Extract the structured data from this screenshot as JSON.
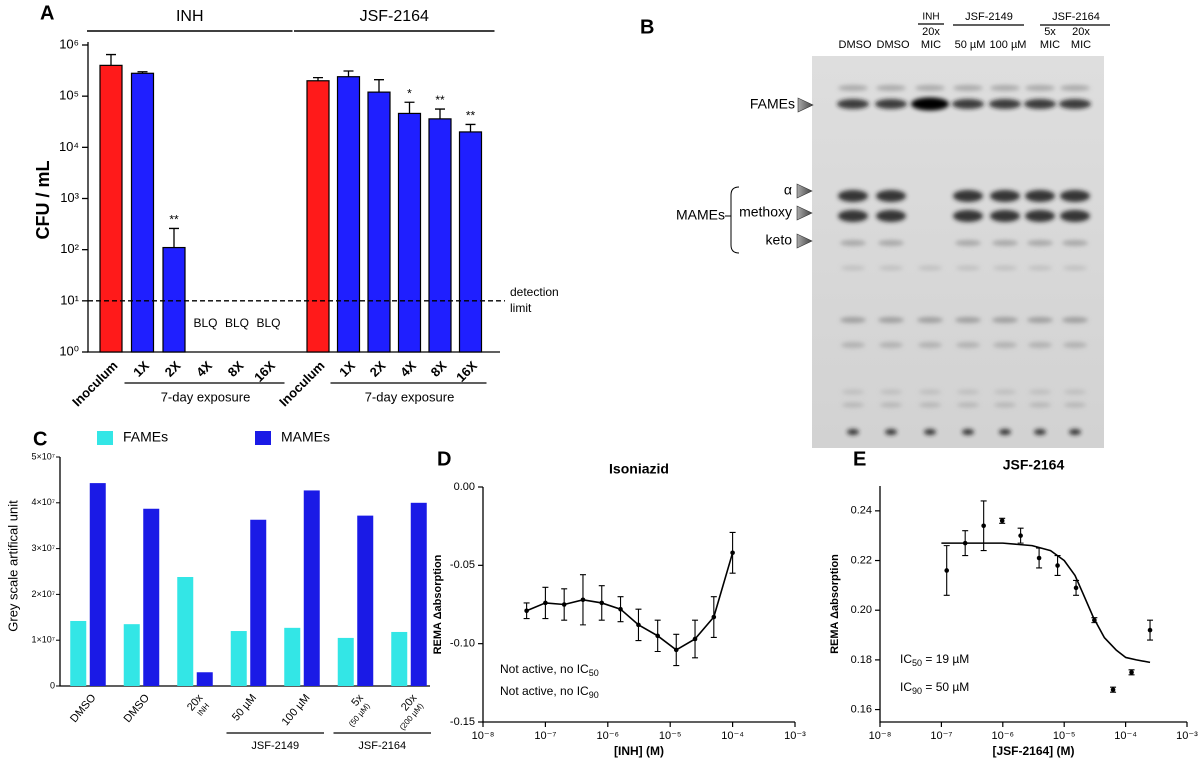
{
  "chart_data": [
    {
      "type": "bar",
      "panel": "A",
      "ylabel": "CFU / mL",
      "log_scale": true,
      "ylim": [
        1,
        1000000
      ],
      "yticks": [
        {
          "value": 1,
          "label": "10⁰"
        },
        {
          "value": 10,
          "label": "10¹"
        },
        {
          "value": 100,
          "label": "10²"
        },
        {
          "value": 1000,
          "label": "10³"
        },
        {
          "value": 10000,
          "label": "10⁴"
        },
        {
          "value": 100000,
          "label": "10⁵"
        },
        {
          "value": 1000000,
          "label": "10⁶"
        }
      ],
      "reference": {
        "value": 10,
        "label": [
          "detection",
          "limit"
        ]
      },
      "groups": [
        {
          "label": "INH",
          "sublabel": "7-day exposure",
          "categories": [
            "Inoculum",
            "1X",
            "2X",
            "4X",
            "8X",
            "16X"
          ],
          "values": [
            400000,
            280000,
            110,
            null,
            null,
            null
          ],
          "errors": [
            250000,
            20000,
            150,
            null,
            null,
            null
          ],
          "colors": [
            "#ff1a1a",
            "#1f1fff",
            "#1f1fff",
            "#1f1fff",
            "#1f1fff",
            "#1f1fff"
          ],
          "annotations": [
            null,
            null,
            "**",
            "BLQ",
            "BLQ",
            "BLQ"
          ]
        },
        {
          "label": "JSF-2164",
          "sublabel": "7-day exposure",
          "categories": [
            "Inoculum",
            "1X",
            "2X",
            "4X",
            "8X",
            "16X"
          ],
          "values": [
            200000,
            240000,
            120000,
            46000,
            36000,
            20000
          ],
          "errors": [
            30000,
            70000,
            90000,
            30000,
            20000,
            8000
          ],
          "colors": [
            "#ff1a1a",
            "#1f1fff",
            "#1f1fff",
            "#1f1fff",
            "#1f1fff",
            "#1f1fff"
          ],
          "annotations": [
            null,
            null,
            null,
            "*",
            "**",
            "**"
          ]
        }
      ]
    },
    {
      "type": "bar",
      "panel": "C",
      "ylabel": "Grey scale artifical unit",
      "ylim": [
        0,
        50000000
      ],
      "yticks": [
        0,
        {
          "value": 10000000,
          "label": "1×10⁷"
        },
        {
          "value": 20000000,
          "label": "2×10⁷"
        },
        {
          "value": 30000000,
          "label": "3×10⁷"
        },
        {
          "value": 40000000,
          "label": "4×10⁷"
        },
        {
          "value": 50000000,
          "label": "5×10⁷"
        }
      ],
      "categories": [
        [
          "DMSO"
        ],
        [
          "DMSO"
        ],
        [
          "20x",
          "INH"
        ],
        [
          "50 µM"
        ],
        [
          "100 µM"
        ],
        [
          "5x",
          "(50 µM)"
        ],
        [
          "20x",
          "(200 µM)"
        ]
      ],
      "category_groups": [
        {
          "label": "JSF-2149",
          "span": [
            3,
            4
          ]
        },
        {
          "label": "JSF-2164",
          "span": [
            5,
            6
          ]
        }
      ],
      "series": [
        {
          "name": "FAMEs",
          "color": "#33e6e6",
          "values": [
            14200000,
            13500000,
            23800000,
            12000000,
            12700000,
            10500000,
            11800000
          ]
        },
        {
          "name": "MAMEs",
          "color": "#1a1ae6",
          "values": [
            44300000,
            38700000,
            3000000,
            36300000,
            42700000,
            37200000,
            40000000
          ]
        }
      ]
    },
    {
      "type": "line",
      "panel": "D",
      "title": "Isoniazid",
      "xlabel": "[INH] (M)",
      "ylabel": "REMA Δabsorption",
      "log_x": true,
      "xlim": [
        1e-08,
        0.001
      ],
      "xticks": [
        {
          "value": 1e-08,
          "label": "10⁻⁸"
        },
        {
          "value": 1e-07,
          "label": "10⁻⁷"
        },
        {
          "value": 1e-06,
          "label": "10⁻⁶"
        },
        {
          "value": 1e-05,
          "label": "10⁻⁵"
        },
        {
          "value": 0.0001,
          "label": "10⁻⁴"
        },
        {
          "value": 0.001,
          "label": "10⁻³"
        }
      ],
      "ylim": [
        -0.15,
        0
      ],
      "yticks": [
        -0.15,
        {
          "value": -0.1,
          "label": "-0.10"
        },
        -0.05,
        {
          "value": 0,
          "label": "0.00"
        }
      ],
      "x": [
        5e-08,
        1e-07,
        2e-07,
        4e-07,
        8e-07,
        1.6e-06,
        3.1e-06,
        6.3e-06,
        1.25e-05,
        2.5e-05,
        5e-05,
        0.0001
      ],
      "values": [
        -0.079,
        -0.074,
        -0.075,
        -0.072,
        -0.074,
        -0.078,
        -0.088,
        -0.095,
        -0.104,
        -0.097,
        -0.083,
        -0.042
      ],
      "errors": [
        0.005,
        0.01,
        0.01,
        0.016,
        0.011,
        0.008,
        0.01,
        0.01,
        0.01,
        0.012,
        0.013,
        0.013
      ],
      "annotations": [
        [
          "Not active, no IC",
          "50"
        ],
        [
          "Not active, no IC",
          "90"
        ]
      ]
    },
    {
      "type": "scatter",
      "panel": "E",
      "title": "JSF-2164",
      "xlabel": "[JSF-2164] (M)",
      "ylabel": "REMA Δabsorption",
      "log_x": true,
      "xlim": [
        1e-08,
        0.001
      ],
      "xticks": [
        {
          "value": 1e-08,
          "label": "10⁻⁸"
        },
        {
          "value": 1e-07,
          "label": "10⁻⁷"
        },
        {
          "value": 1e-06,
          "label": "10⁻⁶"
        },
        {
          "value": 1e-05,
          "label": "10⁻⁵"
        },
        {
          "value": 0.0001,
          "label": "10⁻⁴"
        },
        {
          "value": 0.001,
          "label": "10⁻³"
        }
      ],
      "ylim": [
        0.155,
        0.25
      ],
      "yticks": [
        0.16,
        0.18,
        {
          "value": 0.2,
          "label": "0.20"
        },
        0.22,
        0.24
      ],
      "x": [
        1.22e-07,
        2.44e-07,
        4.88e-07,
        9.77e-07,
        1.95e-06,
        3.9e-06,
        7.8e-06,
        1.56e-05,
        3.1e-05,
        6.25e-05,
        0.000125,
        0.00025
      ],
      "values": [
        0.216,
        0.227,
        0.234,
        0.236,
        0.23,
        0.221,
        0.218,
        0.209,
        0.196,
        0.168,
        0.175,
        0.192
      ],
      "errors": [
        0.01,
        0.005,
        0.01,
        0.001,
        0.003,
        0.004,
        0.004,
        0.003,
        0.001,
        0.001,
        0.001,
        0.004
      ],
      "fit": {
        "x": [
          1e-07,
          1e-06,
          3e-06,
          6e-06,
          1e-05,
          1.5e-05,
          2e-05,
          3e-05,
          4.5e-05,
          7e-05,
          0.0001,
          0.00015,
          0.00025
        ],
        "values": [
          0.227,
          0.227,
          0.226,
          0.224,
          0.22,
          0.214,
          0.207,
          0.197,
          0.189,
          0.184,
          0.181,
          0.18,
          0.179
        ]
      },
      "annotations": [
        [
          "IC",
          "50",
          " = 19 µM"
        ],
        [
          "IC",
          "90",
          " = 50 µM"
        ]
      ]
    }
  ],
  "tlc": {
    "panel": "B",
    "headers": {
      "dmso_a": "DMSO",
      "dmso_b": "DMSO",
      "inh": "INH",
      "inh_dose": [
        "20x",
        "MIC"
      ],
      "jsf2149": "JSF-2149",
      "jsf2149_doses": [
        "50 µM",
        "100 µM"
      ],
      "jsf2164": "JSF-2164",
      "jsf2164_doses": [
        [
          "5x",
          "MIC"
        ],
        [
          "20x",
          "MIC"
        ]
      ]
    },
    "bands": {
      "fames": "FAMEs",
      "mames": "MAMEs",
      "alpha": "α",
      "methoxy": "methoxy",
      "keto": "keto"
    }
  }
}
